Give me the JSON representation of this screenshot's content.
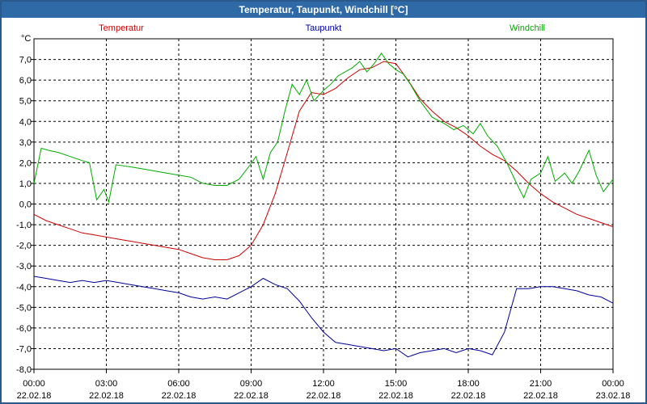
{
  "window": {
    "title": "Temperatur, Taupunkt, Windchill [°C]"
  },
  "chart_data": {
    "type": "line",
    "title": "Temperatur, Taupunkt, Windchill [°C]",
    "ylabel": "°C",
    "ylim": [
      -8,
      8
    ],
    "xlim": [
      0,
      24
    ],
    "grid": true,
    "legend_position": "top",
    "y_ticks": [
      "7,0",
      "6,0",
      "5,0",
      "4,0",
      "3,0",
      "2,0",
      "1,0",
      "0,0",
      "-1,0",
      "-2,0",
      "-3,0",
      "-4,0",
      "-5,0",
      "-6,0",
      "-7,0",
      "-8,0"
    ],
    "x_ticks": [
      {
        "time": "00:00",
        "date": "22.02.18"
      },
      {
        "time": "03:00",
        "date": "22.02.18"
      },
      {
        "time": "06:00",
        "date": "22.02.18"
      },
      {
        "time": "09:00",
        "date": "22.02.18"
      },
      {
        "time": "12:00",
        "date": "22.02.18"
      },
      {
        "time": "15:00",
        "date": "22.02.18"
      },
      {
        "time": "18:00",
        "date": "22.02.18"
      },
      {
        "time": "21:00",
        "date": "22.02.18"
      },
      {
        "time": "00:00",
        "date": "23.02.18"
      }
    ],
    "series": [
      {
        "name": "Temperatur",
        "color": "#cc0000",
        "x": [
          0,
          0.5,
          1,
          1.5,
          2,
          2.5,
          3,
          3.5,
          4,
          4.5,
          5,
          5.5,
          6,
          6.5,
          7,
          7.5,
          8,
          8.5,
          9,
          9.5,
          10,
          10.5,
          11,
          11.5,
          12,
          12.5,
          13,
          13.5,
          14,
          14.5,
          15,
          15.5,
          16,
          16.5,
          17,
          17.5,
          18,
          18.5,
          19,
          19.5,
          20,
          20.5,
          21,
          21.5,
          22,
          22.5,
          23,
          23.5,
          24
        ],
        "values": [
          -0.5,
          -0.8,
          -1.0,
          -1.2,
          -1.4,
          -1.5,
          -1.6,
          -1.7,
          -1.8,
          -1.9,
          -2.0,
          -2.1,
          -2.2,
          -2.4,
          -2.6,
          -2.7,
          -2.7,
          -2.5,
          -2.0,
          -1.0,
          0.5,
          2.5,
          4.5,
          5.4,
          5.3,
          5.6,
          6.1,
          6.5,
          6.6,
          6.9,
          6.8,
          6.0,
          5.1,
          4.5,
          4.0,
          3.7,
          3.3,
          2.8,
          2.4,
          2.1,
          1.6,
          1.0,
          0.5,
          0.1,
          -0.2,
          -0.5,
          -0.7,
          -0.9,
          -1.1
        ]
      },
      {
        "name": "Taupunkt",
        "color": "#000099",
        "x": [
          0,
          0.5,
          1,
          1.5,
          2,
          2.5,
          3,
          3.5,
          4,
          4.5,
          5,
          5.5,
          6,
          6.5,
          7,
          7.5,
          8,
          8.5,
          9,
          9.5,
          10,
          10.5,
          11,
          11.5,
          12,
          12.5,
          13,
          13.5,
          14,
          14.5,
          15,
          15.5,
          16,
          16.5,
          17,
          17.5,
          18,
          18.5,
          19,
          19.5,
          20,
          20.5,
          21,
          21.5,
          22,
          22.5,
          23,
          23.5,
          24
        ],
        "values": [
          -3.5,
          -3.6,
          -3.7,
          -3.8,
          -3.7,
          -3.8,
          -3.7,
          -3.8,
          -3.9,
          -4.0,
          -4.1,
          -4.2,
          -4.3,
          -4.5,
          -4.6,
          -4.5,
          -4.6,
          -4.3,
          -4.0,
          -3.6,
          -3.9,
          -4.1,
          -4.7,
          -5.5,
          -6.2,
          -6.7,
          -6.8,
          -6.9,
          -7.0,
          -7.1,
          -7.0,
          -7.4,
          -7.2,
          -7.1,
          -7.0,
          -7.2,
          -7.0,
          -7.1,
          -7.3,
          -6.2,
          -4.1,
          -4.1,
          -4.0,
          -4.0,
          -4.1,
          -4.2,
          -4.4,
          -4.5,
          -4.8
        ]
      },
      {
        "name": "Windchill",
        "color": "#00aa00",
        "x": [
          0,
          0.3,
          0.6,
          1,
          1.5,
          2,
          2.3,
          2.6,
          2.9,
          3.1,
          3.4,
          4,
          4.5,
          5,
          5.5,
          6,
          6.5,
          7,
          7.5,
          8,
          8.5,
          8.9,
          9.2,
          9.5,
          9.8,
          10.1,
          10.4,
          10.7,
          11,
          11.3,
          11.6,
          12,
          12.3,
          12.6,
          12.9,
          13.2,
          13.5,
          13.8,
          14.1,
          14.4,
          14.7,
          15,
          15.3,
          15.6,
          16,
          16.5,
          17,
          17.4,
          17.8,
          18.2,
          18.5,
          18.8,
          19.2,
          19.6,
          20,
          20.3,
          20.6,
          21,
          21.3,
          21.6,
          22,
          22.3,
          22.6,
          23,
          23.3,
          23.6,
          24
        ],
        "values": [
          1.0,
          2.7,
          2.6,
          2.5,
          2.3,
          2.1,
          2.0,
          0.2,
          0.7,
          0.1,
          1.9,
          1.8,
          1.7,
          1.6,
          1.5,
          1.4,
          1.3,
          1.0,
          0.9,
          0.9,
          1.2,
          1.8,
          2.3,
          1.2,
          2.5,
          3.0,
          4.5,
          5.8,
          5.3,
          6.0,
          5.0,
          5.5,
          5.8,
          6.2,
          6.4,
          6.6,
          6.9,
          6.4,
          6.8,
          7.3,
          6.8,
          6.5,
          6.3,
          5.8,
          5.0,
          4.2,
          3.9,
          3.6,
          3.8,
          3.4,
          3.9,
          3.3,
          2.8,
          2.0,
          1.0,
          0.3,
          1.2,
          1.5,
          2.3,
          1.1,
          1.5,
          1.0,
          1.6,
          2.6,
          1.4,
          0.6,
          1.2
        ]
      }
    ]
  }
}
